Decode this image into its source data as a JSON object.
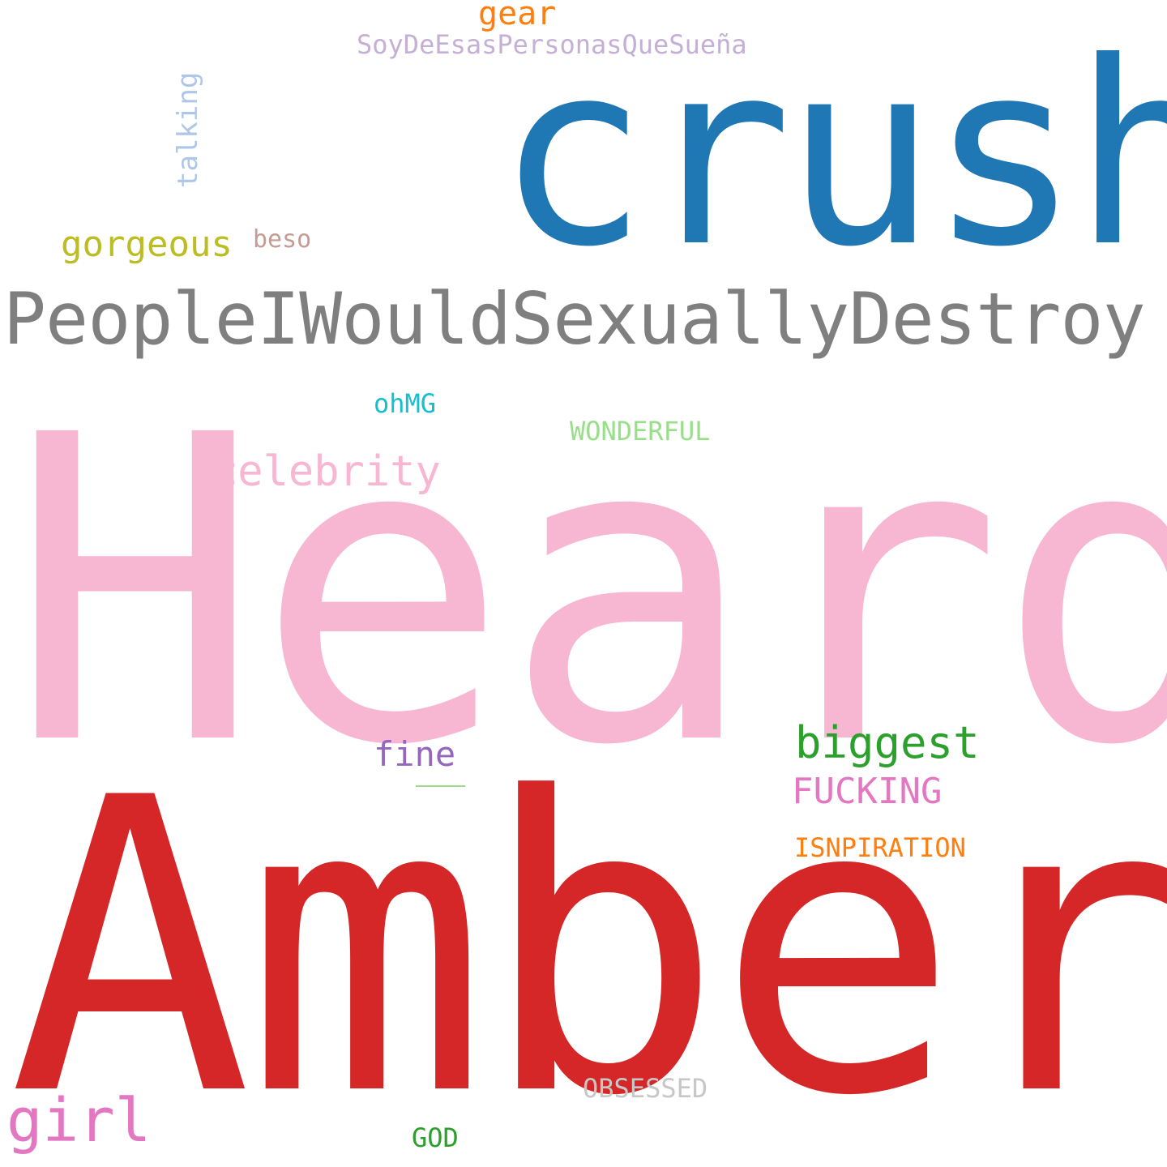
{
  "words": {
    "heard": {
      "text": "Heard",
      "color": "#f7b6d2"
    },
    "amber": {
      "text": "Amber",
      "color": "#d62728"
    },
    "crush": {
      "text": "crush",
      "color": "#1f77b4"
    },
    "people": {
      "text": "PeopleIWouldSexuallyDestroy",
      "color": "#7f7f7f"
    },
    "gear": {
      "text": "gear",
      "color": "#ff7f0e"
    },
    "soy": {
      "text": "SoyDeEsasPersonasQueSueña",
      "color": "#c5b0d5"
    },
    "talking": {
      "text": "talking",
      "color": "#aec7e8"
    },
    "gorgeous": {
      "text": "gorgeous",
      "color": "#bcbd22"
    },
    "beso": {
      "text": "beso",
      "color": "#c49c94"
    },
    "ohmg": {
      "text": "ohMG",
      "color": "#17becf"
    },
    "wonderful": {
      "text": "WONDERFUL",
      "color": "#98df8a"
    },
    "celebrity": {
      "text": "celebrity",
      "color": "#f7b6d2"
    },
    "fine": {
      "text": "fine",
      "color": "#9467bd"
    },
    "biggest": {
      "text": "biggest",
      "color": "#2ca02c"
    },
    "fucking": {
      "text": "FUCKING",
      "color": "#e377c2"
    },
    "isnpiration": {
      "text": "ISNPIRATION",
      "color": "#ff7f0e"
    },
    "obsessed": {
      "text": "OBSESSED",
      "color": "#c7c7c7"
    },
    "girl": {
      "text": "girl",
      "color": "#e377c2"
    },
    "god": {
      "text": "GOD",
      "color": "#2ca02c"
    }
  },
  "marks": {
    "dash_color": "#98df8a"
  }
}
